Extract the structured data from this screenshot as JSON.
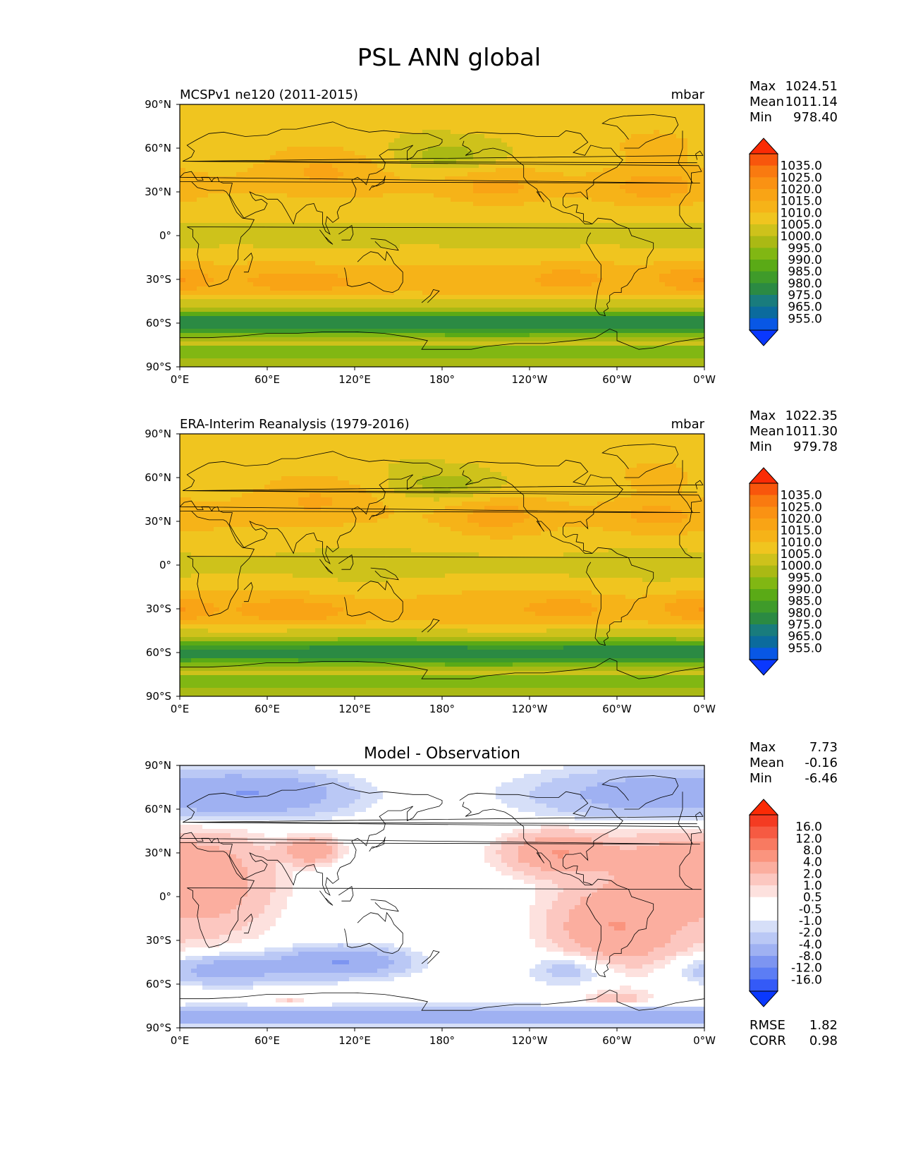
{
  "title": "PSL ANN global",
  "lon_ticks": [
    "0°E",
    "60°E",
    "120°E",
    "180°",
    "120°W",
    "60°W",
    "0°W"
  ],
  "lat_ticks": [
    "90°N",
    "60°N",
    "30°N",
    "0°",
    "30°S",
    "60°S",
    "90°S"
  ],
  "abs_colors": [
    "#0a38fe",
    "#0857e5",
    "#0b6b9d",
    "#197c7d",
    "#2b8a43",
    "#3f9b2a",
    "#5aaa16",
    "#81b713",
    "#aab914",
    "#cec21b",
    "#f0c51f",
    "#f6b318",
    "#f9a415",
    "#fa9213",
    "#f97a10",
    "#f8560c",
    "#fb2b05"
  ],
  "diff_colors": [
    "#0a38fe",
    "#345af7",
    "#5c7df4",
    "#7d95f1",
    "#9fb1f2",
    "#bac8f5",
    "#d6dff8",
    "#ffffff",
    "#ffffff",
    "#fde1de",
    "#fcc7c0",
    "#fbae9f",
    "#fa947e",
    "#f87a61",
    "#f65a42",
    "#f43b22",
    "#fb2b05"
  ],
  "chart_data": [
    {
      "type": "heatmap",
      "subtitle_left": "MCSPv1 ne120 (2011-2015)",
      "subtitle_right": "mbar",
      "stats": [
        {
          "label": "Max",
          "value": "1024.51"
        },
        {
          "label": "Mean",
          "value": "1011.14"
        },
        {
          "label": "Min",
          "value": "978.40"
        }
      ],
      "colorbar_levels": [
        "1035.0",
        "1025.0",
        "1020.0",
        "1015.0",
        "1010.0",
        "1005.0",
        "1000.0",
        "995.0",
        "990.0",
        "985.0",
        "980.0",
        "975.0",
        "965.0",
        "955.0"
      ],
      "xlim": [
        0,
        360
      ],
      "ylim": [
        -90,
        90
      ]
    },
    {
      "type": "heatmap",
      "subtitle_left": "ERA-Interim Reanalysis (1979-2016)",
      "subtitle_right": "mbar",
      "stats": [
        {
          "label": "Max",
          "value": "1022.35"
        },
        {
          "label": "Mean",
          "value": "1011.30"
        },
        {
          "label": "Min",
          "value": "979.78"
        }
      ],
      "colorbar_levels": [
        "1035.0",
        "1025.0",
        "1020.0",
        "1015.0",
        "1010.0",
        "1005.0",
        "1000.0",
        "995.0",
        "990.0",
        "985.0",
        "980.0",
        "975.0",
        "965.0",
        "955.0"
      ],
      "xlim": [
        0,
        360
      ],
      "ylim": [
        -90,
        90
      ]
    },
    {
      "type": "heatmap",
      "subtitle_center": "Model - Observation",
      "stats": [
        {
          "label": "Max",
          "value": "7.73"
        },
        {
          "label": "Mean",
          "value": "-0.16"
        },
        {
          "label": "Min",
          "value": "-6.46"
        }
      ],
      "colorbar_levels": [
        "16.0",
        "12.0",
        "8.0",
        "4.0",
        "2.0",
        "1.0",
        "0.5",
        "-0.5",
        "-1.0",
        "-2.0",
        "-4.0",
        "-8.0",
        "-12.0",
        "-16.0"
      ],
      "extra_stats": [
        {
          "label": "RMSE",
          "value": "1.82"
        },
        {
          "label": "CORR",
          "value": "0.98"
        }
      ],
      "xlim": [
        0,
        360
      ],
      "ylim": [
        -90,
        90
      ]
    }
  ]
}
